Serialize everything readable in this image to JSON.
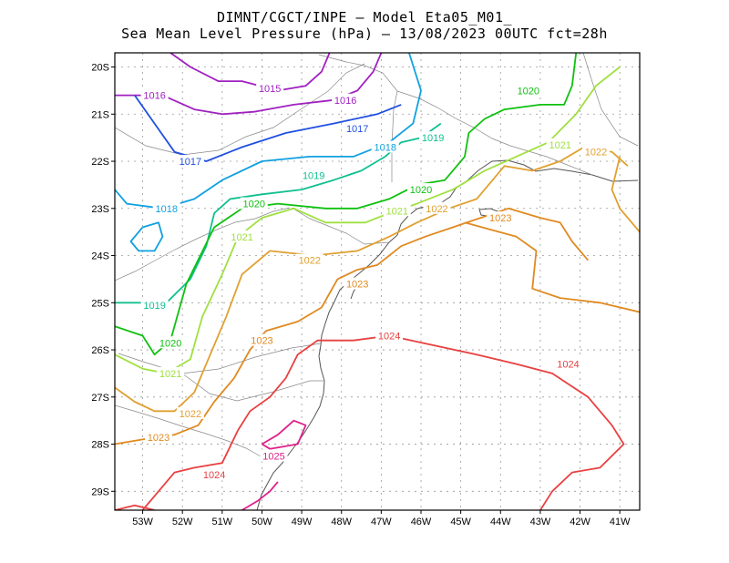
{
  "title_line1": "DIMNT/CGCT/INPE –   Model Eta05_M01_",
  "title_line2": "Sea Mean Level Pressure (hPa) – 13/08/2023 00UTC fct=28h",
  "x_ticks": [
    "53W",
    "52W",
    "51W",
    "50W",
    "49W",
    "48W",
    "47W",
    "46W",
    "45W",
    "44W",
    "43W",
    "42W",
    "41W"
  ],
  "y_ticks": [
    "20S",
    "21S",
    "22S",
    "23S",
    "24S",
    "25S",
    "26S",
    "27S",
    "28S",
    "29S"
  ],
  "map_extent": {
    "lon_min": -53.7,
    "lon_max": -40.5,
    "lat_min": -29.4,
    "lat_max": -19.7
  },
  "grid": true,
  "isobars": [
    {
      "value": 1015,
      "color": "#a020c0",
      "lines": [
        [
          [
            -52.3,
            -19.7
          ],
          [
            -51.8,
            -20.0
          ],
          [
            -51.1,
            -20.3
          ],
          [
            -50.5,
            -20.3
          ],
          [
            -49.6,
            -20.5
          ],
          [
            -48.9,
            -20.4
          ],
          [
            -48.5,
            -20.1
          ],
          [
            -48.3,
            -19.7
          ]
        ]
      ],
      "labels": [
        {
          "text": "1015",
          "lon": -49.8,
          "lat": -20.45
        }
      ]
    },
    {
      "value": 1016,
      "color": "#a020c0",
      "lines": [
        [
          [
            -53.7,
            -20.6
          ],
          [
            -52.5,
            -20.6
          ],
          [
            -51.7,
            -20.9
          ],
          [
            -51.0,
            -21.0
          ],
          [
            -50.2,
            -20.95
          ],
          [
            -49.2,
            -20.8
          ],
          [
            -48.2,
            -20.7
          ],
          [
            -47.6,
            -20.5
          ],
          [
            -47.2,
            -20.1
          ],
          [
            -47.0,
            -19.7
          ]
        ]
      ],
      "labels": [
        {
          "text": "1016",
          "lon": -52.7,
          "lat": -20.6
        },
        {
          "text": "1016",
          "lon": -47.9,
          "lat": -20.7
        }
      ]
    },
    {
      "value": 1017,
      "color": "#2050e0",
      "lines": [
        [
          [
            -53.2,
            -20.6
          ],
          [
            -52.7,
            -21.2
          ],
          [
            -52.2,
            -21.8
          ],
          [
            -51.4,
            -22.0
          ],
          [
            -50.5,
            -21.7
          ],
          [
            -49.4,
            -21.4
          ],
          [
            -48.2,
            -21.2
          ],
          [
            -47.1,
            -21.0
          ],
          [
            -46.5,
            -20.8
          ]
        ]
      ],
      "labels": [
        {
          "text": "1017",
          "lon": -51.8,
          "lat": -22.0
        },
        {
          "text": "1017",
          "lon": -47.6,
          "lat": -21.3
        }
      ]
    },
    {
      "value": 1018,
      "color": "#10a0e0",
      "lines": [
        [
          [
            -53.7,
            -22.6
          ],
          [
            -53.4,
            -22.9
          ],
          [
            -52.5,
            -23.0
          ],
          [
            -51.7,
            -22.8
          ],
          [
            -51.0,
            -22.4
          ],
          [
            -50.0,
            -22.0
          ],
          [
            -48.8,
            -21.9
          ],
          [
            -47.7,
            -21.9
          ],
          [
            -46.8,
            -21.6
          ],
          [
            -46.2,
            -21.2
          ],
          [
            -46.0,
            -20.5
          ],
          [
            -46.3,
            -19.7
          ]
        ],
        [
          [
            -53.0,
            -23.4
          ],
          [
            -52.6,
            -23.3
          ],
          [
            -52.5,
            -23.6
          ],
          [
            -52.7,
            -23.9
          ],
          [
            -53.1,
            -23.9
          ],
          [
            -53.3,
            -23.7
          ],
          [
            -53.0,
            -23.4
          ]
        ]
      ],
      "labels": [
        {
          "text": "1018",
          "lon": -52.4,
          "lat": -23.0
        },
        {
          "text": "1018",
          "lon": -46.9,
          "lat": -21.7
        }
      ]
    },
    {
      "value": 1019,
      "color": "#10c090",
      "lines": [
        [
          [
            -53.7,
            -25.0
          ],
          [
            -53.2,
            -25.0
          ],
          [
            -52.4,
            -25.0
          ],
          [
            -51.8,
            -24.5
          ],
          [
            -51.4,
            -23.8
          ],
          [
            -51.2,
            -23.1
          ],
          [
            -50.8,
            -22.8
          ],
          [
            -50.0,
            -22.7
          ],
          [
            -49.0,
            -22.6
          ],
          [
            -48.2,
            -22.4
          ],
          [
            -47.5,
            -22.2
          ],
          [
            -46.9,
            -21.9
          ],
          [
            -46.5,
            -21.6
          ],
          [
            -46.0,
            -21.5
          ],
          [
            -45.5,
            -21.2
          ]
        ]
      ],
      "labels": [
        {
          "text": "1019",
          "lon": -52.7,
          "lat": -25.05
        },
        {
          "text": "1019",
          "lon": -48.7,
          "lat": -22.3
        },
        {
          "text": "1019",
          "lon": -45.7,
          "lat": -21.5
        }
      ]
    },
    {
      "value": 1020,
      "color": "#10c010",
      "lines": [
        [
          [
            -53.7,
            -25.5
          ],
          [
            -53.0,
            -25.7
          ],
          [
            -52.7,
            -26.1
          ],
          [
            -52.3,
            -25.8
          ],
          [
            -51.9,
            -24.6
          ],
          [
            -51.2,
            -23.4
          ],
          [
            -50.5,
            -23.0
          ],
          [
            -49.6,
            -22.9
          ],
          [
            -48.4,
            -23.0
          ],
          [
            -47.6,
            -23.0
          ],
          [
            -46.8,
            -22.8
          ],
          [
            -46.1,
            -22.5
          ],
          [
            -45.4,
            -22.4
          ],
          [
            -44.9,
            -21.9
          ],
          [
            -44.8,
            -21.4
          ],
          [
            -44.4,
            -21.1
          ],
          [
            -43.9,
            -20.9
          ],
          [
            -43.0,
            -20.8
          ],
          [
            -42.4,
            -20.8
          ],
          [
            -42.2,
            -20.4
          ],
          [
            -42.1,
            -19.7
          ]
        ]
      ],
      "labels": [
        {
          "text": "1020",
          "lon": -52.3,
          "lat": -25.85
        },
        {
          "text": "1020",
          "lon": -50.2,
          "lat": -22.9
        },
        {
          "text": "1020",
          "lon": -46.0,
          "lat": -22.6
        },
        {
          "text": "1020",
          "lon": -43.3,
          "lat": -20.5
        }
      ]
    },
    {
      "value": 1021,
      "color": "#a0e040",
      "lines": [
        [
          [
            -53.7,
            -26.1
          ],
          [
            -53.0,
            -26.4
          ],
          [
            -52.4,
            -26.5
          ],
          [
            -51.8,
            -26.2
          ],
          [
            -51.5,
            -25.3
          ],
          [
            -51.0,
            -24.4
          ],
          [
            -50.6,
            -23.6
          ],
          [
            -50.0,
            -23.2
          ],
          [
            -49.2,
            -23.0
          ],
          [
            -48.4,
            -23.3
          ],
          [
            -47.4,
            -23.3
          ],
          [
            -46.8,
            -23.1
          ],
          [
            -46.1,
            -22.9
          ],
          [
            -45.2,
            -22.6
          ],
          [
            -44.4,
            -22.2
          ],
          [
            -43.6,
            -21.9
          ],
          [
            -42.8,
            -21.6
          ],
          [
            -42.1,
            -21.0
          ],
          [
            -41.6,
            -20.4
          ],
          [
            -41.0,
            -20.0
          ]
        ]
      ],
      "labels": [
        {
          "text": "1021",
          "lon": -52.3,
          "lat": -26.5
        },
        {
          "text": "1021",
          "lon": -50.5,
          "lat": -23.6
        },
        {
          "text": "1021",
          "lon": -46.6,
          "lat": -23.05
        },
        {
          "text": "1021",
          "lon": -42.5,
          "lat": -21.65
        }
      ]
    },
    {
      "value": 1022,
      "color": "#e0a030",
      "lines": [
        [
          [
            -53.7,
            -26.8
          ],
          [
            -53.2,
            -27.1
          ],
          [
            -52.7,
            -27.3
          ],
          [
            -52.2,
            -27.3
          ],
          [
            -51.7,
            -26.9
          ],
          [
            -51.3,
            -26.1
          ],
          [
            -50.9,
            -25.3
          ],
          [
            -50.5,
            -24.4
          ],
          [
            -49.8,
            -23.9
          ],
          [
            -48.7,
            -24.0
          ],
          [
            -47.6,
            -23.9
          ],
          [
            -46.8,
            -23.6
          ],
          [
            -46.1,
            -23.3
          ],
          [
            -45.3,
            -23.0
          ],
          [
            -44.6,
            -22.8
          ],
          [
            -43.9,
            -22.1
          ],
          [
            -43.2,
            -22.2
          ],
          [
            -42.5,
            -22.0
          ],
          [
            -41.9,
            -21.7
          ],
          [
            -41.2,
            -21.8
          ],
          [
            -40.8,
            -22.1
          ]
        ],
        [
          [
            -40.5,
            -23.5
          ],
          [
            -41.0,
            -23.0
          ],
          [
            -41.2,
            -22.6
          ],
          [
            -41.0,
            -21.9
          ]
        ]
      ],
      "labels": [
        {
          "text": "1022",
          "lon": -51.8,
          "lat": -27.35
        },
        {
          "text": "1022",
          "lon": -48.8,
          "lat": -24.1
        },
        {
          "text": "1022",
          "lon": -45.6,
          "lat": -23.0
        },
        {
          "text": "1022",
          "lon": -41.6,
          "lat": -21.8
        }
      ]
    },
    {
      "value": 1023,
      "color": "#e08a20",
      "lines": [
        [
          [
            -53.7,
            -28.0
          ],
          [
            -53.0,
            -27.9
          ],
          [
            -52.2,
            -27.8
          ],
          [
            -51.6,
            -27.6
          ],
          [
            -51.2,
            -27.1
          ],
          [
            -50.7,
            -26.6
          ],
          [
            -50.3,
            -26.0
          ],
          [
            -49.9,
            -25.6
          ],
          [
            -49.1,
            -25.4
          ],
          [
            -48.5,
            -25.1
          ],
          [
            -48.1,
            -24.5
          ],
          [
            -47.6,
            -24.3
          ],
          [
            -47.1,
            -24.2
          ],
          [
            -46.5,
            -23.8
          ],
          [
            -45.9,
            -23.6
          ],
          [
            -45.2,
            -23.4
          ],
          [
            -44.5,
            -23.2
          ],
          [
            -43.8,
            -23.0
          ],
          [
            -43.0,
            -23.2
          ],
          [
            -42.5,
            -23.3
          ],
          [
            -42.2,
            -23.7
          ],
          [
            -41.8,
            -24.1
          ]
        ],
        [
          [
            -44.9,
            -23.3
          ],
          [
            -43.6,
            -23.6
          ],
          [
            -43.1,
            -23.9
          ],
          [
            -43.2,
            -24.7
          ],
          [
            -42.5,
            -24.9
          ],
          [
            -41.5,
            -25.0
          ],
          [
            -40.5,
            -25.2
          ]
        ]
      ],
      "labels": [
        {
          "text": "1023",
          "lon": -52.6,
          "lat": -27.85
        },
        {
          "text": "1023",
          "lon": -50.0,
          "lat": -25.8
        },
        {
          "text": "1023",
          "lon": -47.6,
          "lat": -24.6
        },
        {
          "text": "1023",
          "lon": -44.0,
          "lat": -23.2
        }
      ]
    },
    {
      "value": 1024,
      "color": "#e84040",
      "lines": [
        [
          [
            -53.0,
            -29.4
          ],
          [
            -52.6,
            -29.0
          ],
          [
            -52.2,
            -28.6
          ],
          [
            -51.7,
            -28.5
          ],
          [
            -51.0,
            -28.4
          ],
          [
            -50.6,
            -27.7
          ],
          [
            -50.3,
            -27.3
          ],
          [
            -49.8,
            -27.0
          ],
          [
            -49.4,
            -26.6
          ],
          [
            -49.1,
            -26.1
          ],
          [
            -48.6,
            -25.8
          ],
          [
            -47.7,
            -25.8
          ],
          [
            -46.8,
            -25.7
          ],
          [
            -45.7,
            -25.9
          ],
          [
            -44.6,
            -26.1
          ],
          [
            -43.6,
            -26.3
          ],
          [
            -42.7,
            -26.5
          ],
          [
            -41.8,
            -27.0
          ],
          [
            -41.2,
            -27.6
          ],
          [
            -40.9,
            -28.0
          ],
          [
            -41.5,
            -28.5
          ],
          [
            -42.2,
            -28.6
          ],
          [
            -42.7,
            -29.0
          ],
          [
            -43.0,
            -29.4
          ]
        ],
        [
          [
            -53.7,
            -29.4
          ],
          [
            -53.2,
            -29.3
          ],
          [
            -52.7,
            -29.4
          ]
        ]
      ],
      "labels": [
        {
          "text": "1024",
          "lon": -51.2,
          "lat": -28.65
        },
        {
          "text": "1024",
          "lon": -46.8,
          "lat": -25.7
        },
        {
          "text": "1024",
          "lon": -42.3,
          "lat": -26.3
        }
      ]
    },
    {
      "value": 1025,
      "color": "#e0208a",
      "lines": [
        [
          [
            -50.0,
            -28.0
          ],
          [
            -49.6,
            -27.8
          ],
          [
            -49.2,
            -27.5
          ],
          [
            -48.9,
            -27.6
          ],
          [
            -49.1,
            -28.0
          ],
          [
            -49.8,
            -28.1
          ],
          [
            -50.0,
            -28.0
          ]
        ],
        [
          [
            -50.5,
            -29.4
          ],
          [
            -50.1,
            -29.2
          ],
          [
            -49.8,
            -29.0
          ],
          [
            -49.6,
            -28.8
          ]
        ]
      ],
      "labels": [
        {
          "text": "1025",
          "lon": -49.7,
          "lat": -28.25
        }
      ]
    }
  ]
}
